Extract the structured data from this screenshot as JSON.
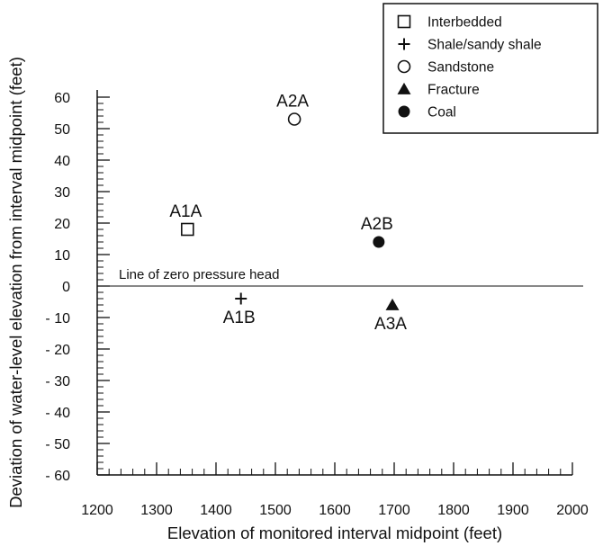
{
  "chart_data": {
    "type": "scatter",
    "xlabel": "Elevation of monitored interval midpoint (feet)",
    "ylabel": "Deviation of water-level elevation from interval midpoint (feet)",
    "xlim": [
      1200,
      2000
    ],
    "ylim": [
      -60,
      60
    ],
    "x_ticks": [
      1200,
      1300,
      1400,
      1500,
      1600,
      1700,
      1800,
      1900,
      2000
    ],
    "y_ticks": [
      60,
      50,
      40,
      30,
      20,
      10,
      0,
      -10,
      -20,
      -30,
      -40,
      -50,
      -60
    ],
    "x_tick_labels": [
      "1200",
      "1300",
      "1400",
      "1500",
      "1600",
      "1700",
      "1800",
      "1900",
      "2000"
    ],
    "y_tick_labels": [
      "60",
      "50",
      "40",
      "30",
      "20",
      "10",
      "0",
      "- 10",
      "- 20",
      "- 30",
      "- 40",
      "- 50",
      "- 60"
    ],
    "x_minor_step": 20,
    "y_minor_step": 2,
    "grid": false,
    "legend_position": "top-right",
    "legend": [
      {
        "label": "Interbedded",
        "marker": "open-square"
      },
      {
        "label": "Shale/sandy shale",
        "marker": "plus"
      },
      {
        "label": "Sandstone",
        "marker": "open-circle"
      },
      {
        "label": "Fracture",
        "marker": "filled-triangle"
      },
      {
        "label": "Coal",
        "marker": "filled-circle"
      }
    ],
    "points": [
      {
        "label": "A1A",
        "x": 1352,
        "y": 18,
        "marker": "open-square",
        "label_side": "above"
      },
      {
        "label": "A1B",
        "x": 1442,
        "y": -4,
        "marker": "plus",
        "label_side": "below"
      },
      {
        "label": "A2A",
        "x": 1532,
        "y": 53,
        "marker": "open-circle",
        "label_side": "above"
      },
      {
        "label": "A2B",
        "x": 1674,
        "y": 14,
        "marker": "filled-circle",
        "label_side": "above"
      },
      {
        "label": "A3A",
        "x": 1697,
        "y": -6,
        "marker": "filled-triangle",
        "label_side": "below"
      }
    ],
    "reference_line": {
      "y": 0,
      "label": "Line of zero pressure head"
    }
  }
}
